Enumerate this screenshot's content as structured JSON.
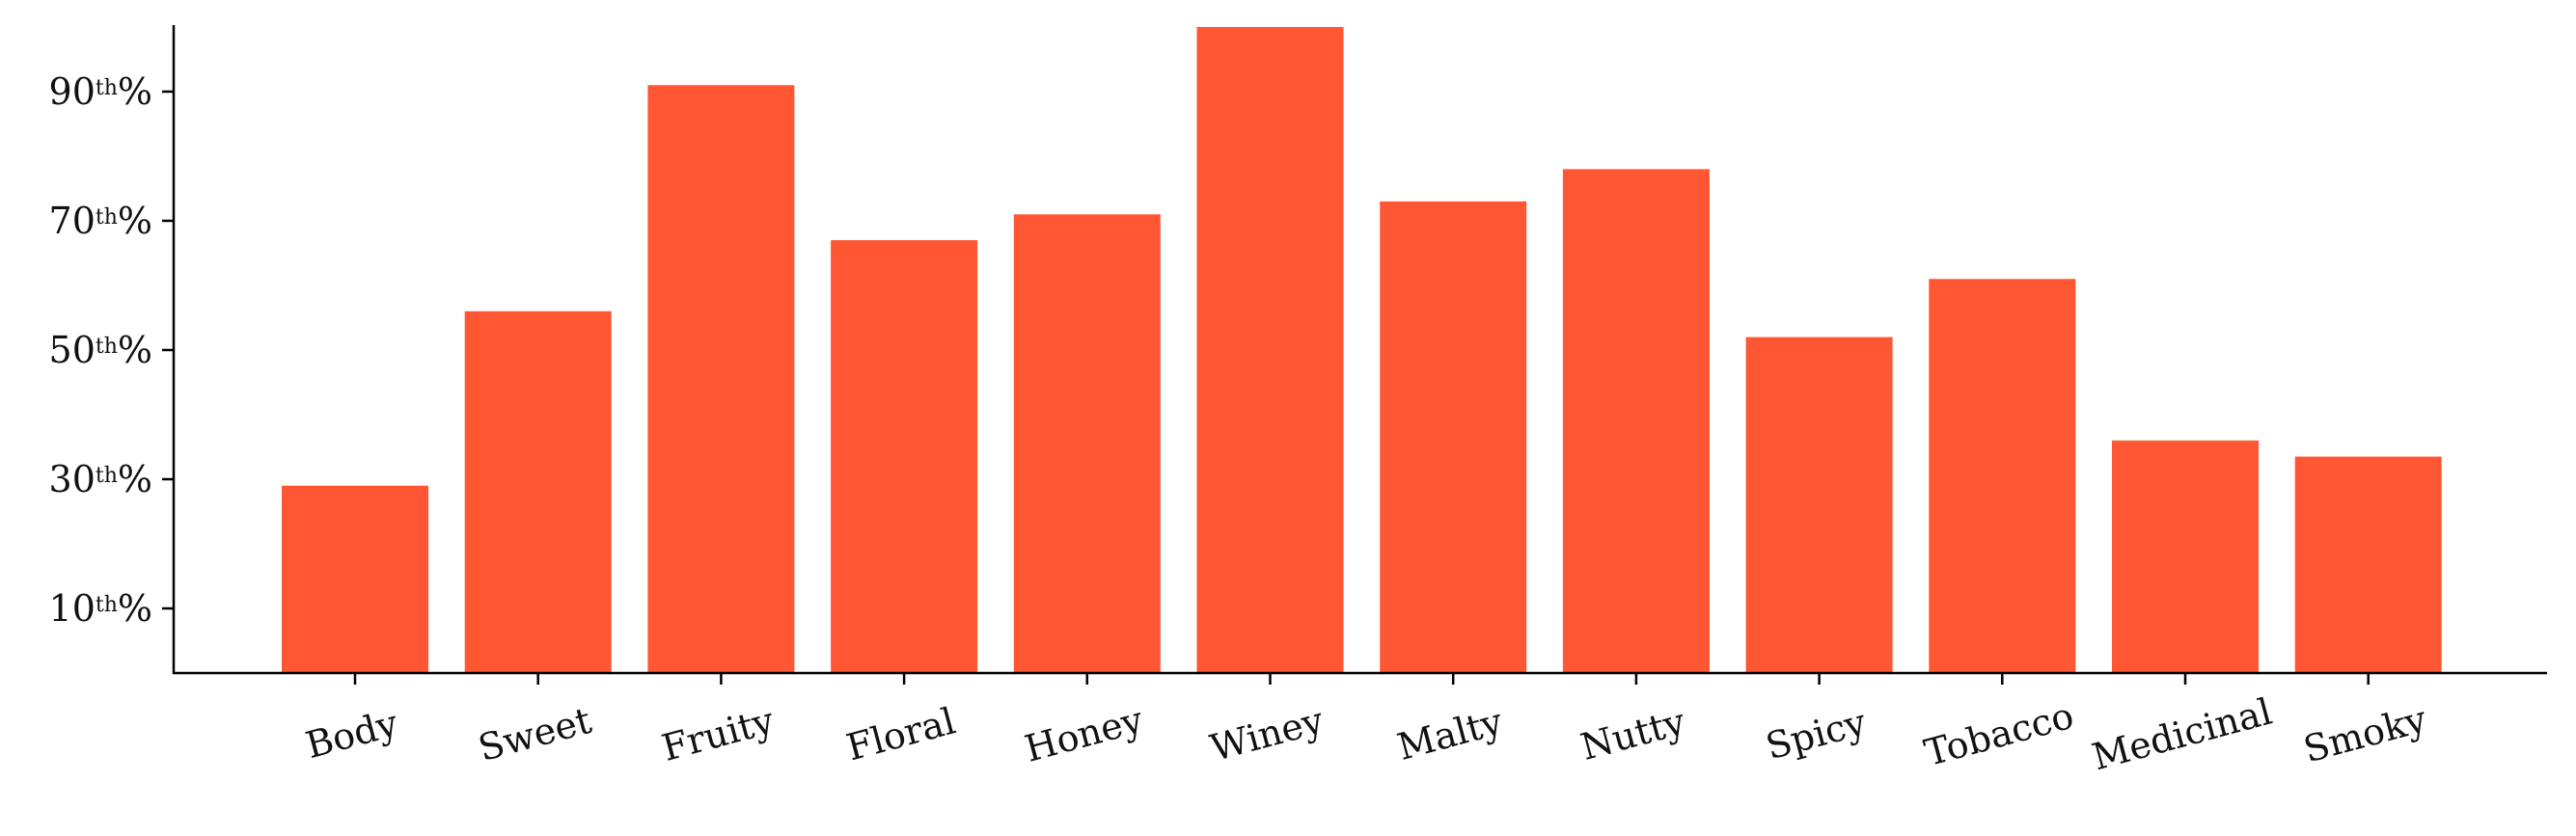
{
  "colors": {
    "bar": "#FF5733",
    "axis": "#000000",
    "text": "#111111",
    "background": "#ffffff"
  },
  "chart_data": {
    "type": "bar",
    "title": "",
    "xlabel": "",
    "ylabel": "",
    "categories": [
      "Body",
      "Sweet",
      "Fruity",
      "Floral",
      "Honey",
      "Winey",
      "Malty",
      "Nutty",
      "Spicy",
      "Tobacco",
      "Medicinal",
      "Smoky"
    ],
    "values": [
      29,
      56,
      91,
      67,
      71,
      100,
      73,
      78,
      52,
      61,
      36,
      33.5
    ],
    "ylim": [
      0,
      100
    ],
    "yticks": [
      {
        "value": 10,
        "num": "10",
        "sup": "th",
        "suffix": "%"
      },
      {
        "value": 30,
        "num": "30",
        "sup": "th",
        "suffix": "%"
      },
      {
        "value": 50,
        "num": "50",
        "sup": "th",
        "suffix": "%"
      },
      {
        "value": 70,
        "num": "70",
        "sup": "th",
        "suffix": "%"
      },
      {
        "value": 90,
        "num": "90",
        "sup": "th",
        "suffix": "%"
      }
    ],
    "grid": false,
    "legend": "none",
    "xtick_rotation": "slight counter-clockwise"
  }
}
